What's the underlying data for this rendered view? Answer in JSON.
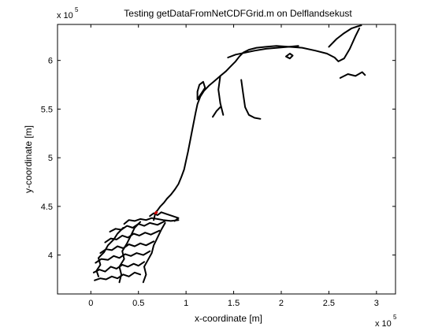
{
  "chart_data": {
    "type": "line",
    "title": "Testing getDataFromNetCDFGrid.m on Delflandsekust",
    "xlabel": "x-coordinate [m]",
    "ylabel": "y-coordinate [m]",
    "x_exponent_label": "x 10",
    "x_exponent_power": "5",
    "y_exponent_label": "x 10",
    "y_exponent_power": "5",
    "xlim": [
      -0.35,
      3.2
    ],
    "ylim": [
      3.6,
      6.37
    ],
    "xticks": [
      0,
      0.5,
      1,
      1.5,
      2,
      2.5,
      3
    ],
    "xtick_labels": [
      "0",
      "0.5",
      "1",
      "1.5",
      "2",
      "2.5",
      "3"
    ],
    "yticks": [
      4,
      4.5,
      5,
      5.5,
      6
    ],
    "ytick_labels": [
      "4",
      "4.5",
      "5",
      "5.5",
      "6"
    ],
    "grid": false,
    "colors": {
      "line": "#000000",
      "marker": "#cc0000",
      "axes": "#000000"
    },
    "series": [
      {
        "values": [
          [
            0.04,
            3.74
          ],
          [
            0.1,
            3.76
          ],
          [
            0.16,
            3.75
          ],
          [
            0.22,
            3.78
          ],
          [
            0.28,
            3.76
          ],
          [
            0.34,
            3.8
          ],
          [
            0.4,
            3.78
          ],
          [
            0.46,
            3.82
          ],
          [
            0.52,
            3.8
          ]
        ]
      },
      {
        "values": [
          [
            0.03,
            3.82
          ],
          [
            0.09,
            3.85
          ],
          [
            0.15,
            3.83
          ],
          [
            0.21,
            3.88
          ],
          [
            0.27,
            3.86
          ],
          [
            0.33,
            3.9
          ],
          [
            0.39,
            3.88
          ],
          [
            0.45,
            3.91
          ],
          [
            0.5,
            3.89
          ],
          [
            0.56,
            3.93
          ]
        ]
      },
      {
        "values": [
          [
            0.05,
            3.92
          ],
          [
            0.11,
            3.96
          ],
          [
            0.18,
            3.95
          ],
          [
            0.24,
            3.99
          ],
          [
            0.3,
            3.97
          ],
          [
            0.36,
            4.01
          ],
          [
            0.42,
            3.99
          ],
          [
            0.48,
            4.02
          ],
          [
            0.55,
            4.0
          ],
          [
            0.62,
            4.04
          ]
        ]
      },
      {
        "values": [
          [
            0.1,
            4.02
          ],
          [
            0.16,
            4.06
          ],
          [
            0.22,
            4.05
          ],
          [
            0.28,
            4.09
          ],
          [
            0.34,
            4.07
          ],
          [
            0.4,
            4.11
          ],
          [
            0.46,
            4.09
          ],
          [
            0.52,
            4.12
          ],
          [
            0.58,
            4.1
          ],
          [
            0.66,
            4.14
          ]
        ]
      },
      {
        "values": [
          [
            0.15,
            4.13
          ],
          [
            0.21,
            4.17
          ],
          [
            0.27,
            4.16
          ],
          [
            0.33,
            4.2
          ],
          [
            0.39,
            4.18
          ],
          [
            0.45,
            4.22
          ],
          [
            0.51,
            4.2
          ],
          [
            0.57,
            4.23
          ],
          [
            0.63,
            4.21
          ],
          [
            0.72,
            4.25
          ]
        ]
      },
      {
        "values": [
          [
            0.2,
            4.24
          ],
          [
            0.26,
            4.27
          ],
          [
            0.32,
            4.26
          ],
          [
            0.38,
            4.3
          ],
          [
            0.44,
            4.28
          ],
          [
            0.5,
            4.32
          ],
          [
            0.56,
            4.3
          ],
          [
            0.62,
            4.33
          ],
          [
            0.7,
            4.31
          ],
          [
            0.78,
            4.35
          ]
        ]
      },
      {
        "values": [
          [
            0.35,
            4.32
          ],
          [
            0.4,
            4.36
          ],
          [
            0.46,
            4.35
          ],
          [
            0.52,
            4.37
          ],
          [
            0.58,
            4.36
          ],
          [
            0.64,
            4.38
          ],
          [
            0.7,
            4.37
          ],
          [
            0.76,
            4.36
          ],
          [
            0.84,
            4.35
          ],
          [
            0.92,
            4.36
          ]
        ]
      },
      {
        "values": [
          [
            0.08,
            3.78
          ],
          [
            0.06,
            3.84
          ],
          [
            0.1,
            3.9
          ],
          [
            0.08,
            3.97
          ],
          [
            0.14,
            4.03
          ],
          [
            0.18,
            4.1
          ],
          [
            0.24,
            4.16
          ],
          [
            0.28,
            4.22
          ],
          [
            0.34,
            4.28
          ]
        ]
      },
      {
        "values": [
          [
            0.3,
            3.72
          ],
          [
            0.32,
            3.8
          ],
          [
            0.3,
            3.88
          ],
          [
            0.35,
            3.96
          ],
          [
            0.33,
            4.04
          ],
          [
            0.38,
            4.12
          ],
          [
            0.42,
            4.2
          ],
          [
            0.46,
            4.28
          ],
          [
            0.52,
            4.34
          ]
        ]
      },
      {
        "values": [
          [
            0.55,
            3.72
          ],
          [
            0.58,
            3.8
          ],
          [
            0.56,
            3.88
          ],
          [
            0.6,
            3.95
          ],
          [
            0.64,
            4.02
          ],
          [
            0.66,
            4.1
          ],
          [
            0.7,
            4.18
          ],
          [
            0.74,
            4.26
          ],
          [
            0.78,
            4.33
          ]
        ]
      },
      {
        "values": [
          [
            0.62,
            4.4
          ],
          [
            0.66,
            4.43
          ],
          [
            0.7,
            4.41
          ],
          [
            0.74,
            4.44
          ],
          [
            0.8,
            4.42
          ],
          [
            0.86,
            4.4
          ],
          [
            0.92,
            4.38
          ],
          [
            0.88,
            4.35
          ]
        ]
      },
      {
        "values": [
          [
            0.66,
            4.36
          ],
          [
            0.67,
            4.4
          ],
          [
            0.68,
            4.44
          ],
          [
            0.7,
            4.46
          ],
          [
            0.73,
            4.5
          ],
          [
            0.77,
            4.54
          ],
          [
            0.8,
            4.58
          ],
          [
            0.84,
            4.62
          ],
          [
            0.88,
            4.67
          ],
          [
            0.92,
            4.73
          ],
          [
            0.95,
            4.8
          ],
          [
            0.98,
            4.88
          ],
          [
            1.0,
            4.97
          ],
          [
            1.02,
            5.06
          ],
          [
            1.04,
            5.16
          ],
          [
            1.06,
            5.26
          ],
          [
            1.08,
            5.36
          ],
          [
            1.1,
            5.46
          ],
          [
            1.12,
            5.55
          ],
          [
            1.15,
            5.63
          ],
          [
            1.19,
            5.69
          ],
          [
            1.24,
            5.74
          ],
          [
            1.3,
            5.79
          ],
          [
            1.36,
            5.84
          ],
          [
            1.42,
            5.89
          ],
          [
            1.47,
            5.94
          ],
          [
            1.52,
            5.99
          ],
          [
            1.56,
            6.04
          ],
          [
            1.6,
            6.08
          ],
          [
            1.66,
            6.11
          ],
          [
            1.74,
            6.13
          ],
          [
            1.84,
            6.14
          ],
          [
            1.95,
            6.15
          ],
          [
            2.08,
            6.14
          ],
          [
            2.22,
            6.13
          ],
          [
            2.36,
            6.1
          ],
          [
            2.48,
            6.07
          ],
          [
            2.56,
            6.03
          ],
          [
            2.6,
            5.99
          ],
          [
            2.66,
            6.02
          ],
          [
            2.72,
            6.12
          ],
          [
            2.78,
            6.25
          ],
          [
            2.82,
            6.33
          ]
        ]
      },
      {
        "values": [
          [
            1.12,
            5.6
          ],
          [
            1.16,
            5.66
          ],
          [
            1.2,
            5.72
          ],
          [
            1.18,
            5.78
          ],
          [
            1.14,
            5.75
          ],
          [
            1.12,
            5.68
          ],
          [
            1.12,
            5.6
          ]
        ]
      },
      {
        "values": [
          [
            1.36,
            5.84
          ],
          [
            1.34,
            5.7
          ],
          [
            1.36,
            5.56
          ],
          [
            1.39,
            5.44
          ]
        ]
      },
      {
        "values": [
          [
            1.58,
            5.8
          ],
          [
            1.6,
            5.66
          ],
          [
            1.62,
            5.52
          ],
          [
            1.66,
            5.44
          ],
          [
            1.72,
            5.41
          ],
          [
            1.78,
            5.4
          ]
        ]
      },
      {
        "values": [
          [
            1.36,
            5.52
          ],
          [
            1.32,
            5.48
          ],
          [
            1.28,
            5.42
          ]
        ]
      },
      {
        "values": [
          [
            1.44,
            6.03
          ],
          [
            1.52,
            6.06
          ],
          [
            1.62,
            6.08
          ],
          [
            1.72,
            6.1
          ],
          [
            1.84,
            6.12
          ],
          [
            1.96,
            6.13
          ],
          [
            2.08,
            6.14
          ],
          [
            2.18,
            6.15
          ]
        ]
      },
      {
        "values": [
          [
            2.5,
            6.14
          ],
          [
            2.58,
            6.22
          ],
          [
            2.66,
            6.28
          ],
          [
            2.74,
            6.33
          ],
          [
            2.8,
            6.35
          ],
          [
            2.84,
            6.36
          ]
        ]
      },
      {
        "values": [
          [
            2.05,
            6.04
          ],
          [
            2.09,
            6.07
          ],
          [
            2.12,
            6.05
          ],
          [
            2.09,
            6.02
          ],
          [
            2.05,
            6.04
          ]
        ]
      },
      {
        "values": [
          [
            2.62,
            5.82
          ],
          [
            2.7,
            5.86
          ],
          [
            2.78,
            5.84
          ],
          [
            2.85,
            5.88
          ],
          [
            2.88,
            5.85
          ]
        ]
      }
    ],
    "markers": [
      [
        0.68,
        4.43
      ],
      [
        0.69,
        4.44
      ]
    ]
  }
}
